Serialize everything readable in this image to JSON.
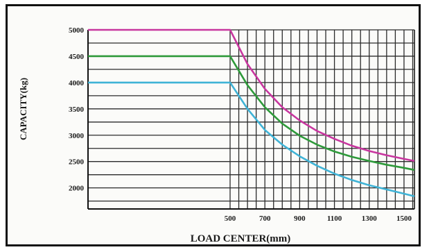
{
  "chart_data": {
    "type": "line",
    "xlabel": "LOAD CENTER(mm)",
    "ylabel": "CAPACITY(kg)",
    "x_ticks": [
      500,
      700,
      900,
      1100,
      1300,
      1500
    ],
    "y_ticks": [
      2000,
      2500,
      3000,
      3500,
      4000,
      4500,
      5000
    ],
    "xlim": [
      500,
      1560
    ],
    "ylim": [
      1600,
      5000
    ],
    "grid": true,
    "legend": "none",
    "series": [
      {
        "color": "#c8369f",
        "x": [
          500,
          600,
          700,
          800,
          900,
          1000,
          1100,
          1200,
          1300,
          1400,
          1500,
          1560
        ],
        "y": [
          5000,
          4350,
          3880,
          3530,
          3280,
          3080,
          2930,
          2800,
          2700,
          2620,
          2550,
          2510
        ]
      },
      {
        "color": "#2e9a3a",
        "x": [
          500,
          600,
          700,
          800,
          900,
          1000,
          1100,
          1200,
          1300,
          1400,
          1500,
          1560
        ],
        "y": [
          4500,
          3950,
          3530,
          3220,
          2990,
          2820,
          2690,
          2590,
          2510,
          2440,
          2380,
          2340
        ]
      },
      {
        "color": "#3fb3d6",
        "x": [
          500,
          600,
          700,
          800,
          900,
          1000,
          1100,
          1200,
          1300,
          1400,
          1500,
          1560
        ],
        "y": [
          4000,
          3500,
          3100,
          2820,
          2600,
          2420,
          2270,
          2150,
          2050,
          1970,
          1890,
          1840
        ]
      }
    ]
  }
}
